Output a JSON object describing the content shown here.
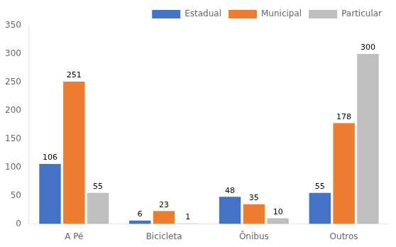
{
  "chart_data": {
    "type": "bar",
    "categories": [
      "A Pé",
      "Bicicleta",
      "Ônibus",
      "Outros"
    ],
    "series": [
      {
        "name": "Estadual",
        "color": "#4472C4",
        "values": [
          106,
          6,
          48,
          55
        ]
      },
      {
        "name": "Municipal",
        "color": "#ED7D31",
        "values": [
          251,
          23,
          35,
          178
        ]
      },
      {
        "name": "Particular",
        "color": "#BFBFBF",
        "values": [
          55,
          1,
          10,
          300
        ]
      }
    ],
    "ylim": [
      0,
      350
    ],
    "yticks": [
      0,
      50,
      100,
      150,
      200,
      250,
      300,
      350
    ],
    "grid": false,
    "legend": "upper right",
    "data_labels": true
  }
}
